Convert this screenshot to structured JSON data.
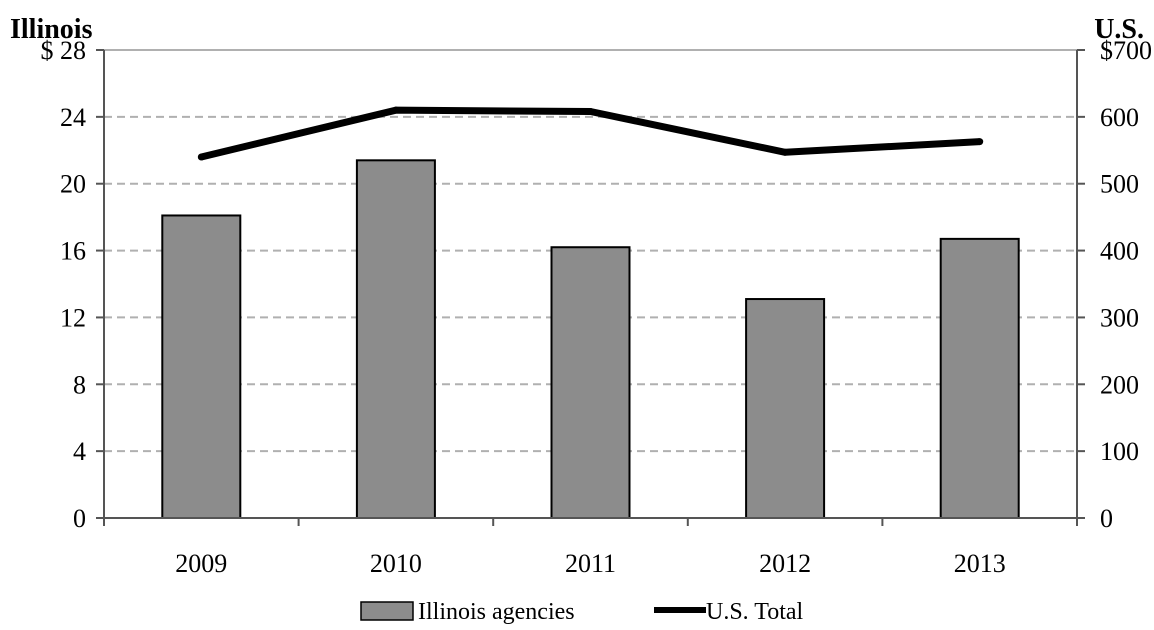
{
  "chart_data": {
    "type": "bar",
    "categories": [
      "2009",
      "2010",
      "2011",
      "2012",
      "2013"
    ],
    "series": [
      {
        "name": "Illinois agencies",
        "type": "bar",
        "axis": "left",
        "values": [
          18.1,
          21.4,
          16.2,
          13.1,
          16.7
        ]
      },
      {
        "name": "U.S. Total",
        "type": "line",
        "axis": "right",
        "values": [
          540,
          610,
          608,
          547,
          563
        ]
      }
    ],
    "left_axis": {
      "title": "Illinois",
      "ylim": [
        0,
        28
      ],
      "ticks": [
        "0",
        "4",
        "8",
        "12",
        "16",
        "20",
        "24",
        "$ 28"
      ]
    },
    "right_axis": {
      "title": "U.S.",
      "ylim": [
        0,
        700
      ],
      "ticks": [
        "0",
        "100",
        "200",
        "300",
        "400",
        "500",
        "600",
        "$700"
      ]
    },
    "grid": true,
    "legend_position": "bottom",
    "colors": {
      "bar": "#8c8c8c",
      "line": "#000000",
      "grid": "#b0b0b0"
    }
  }
}
